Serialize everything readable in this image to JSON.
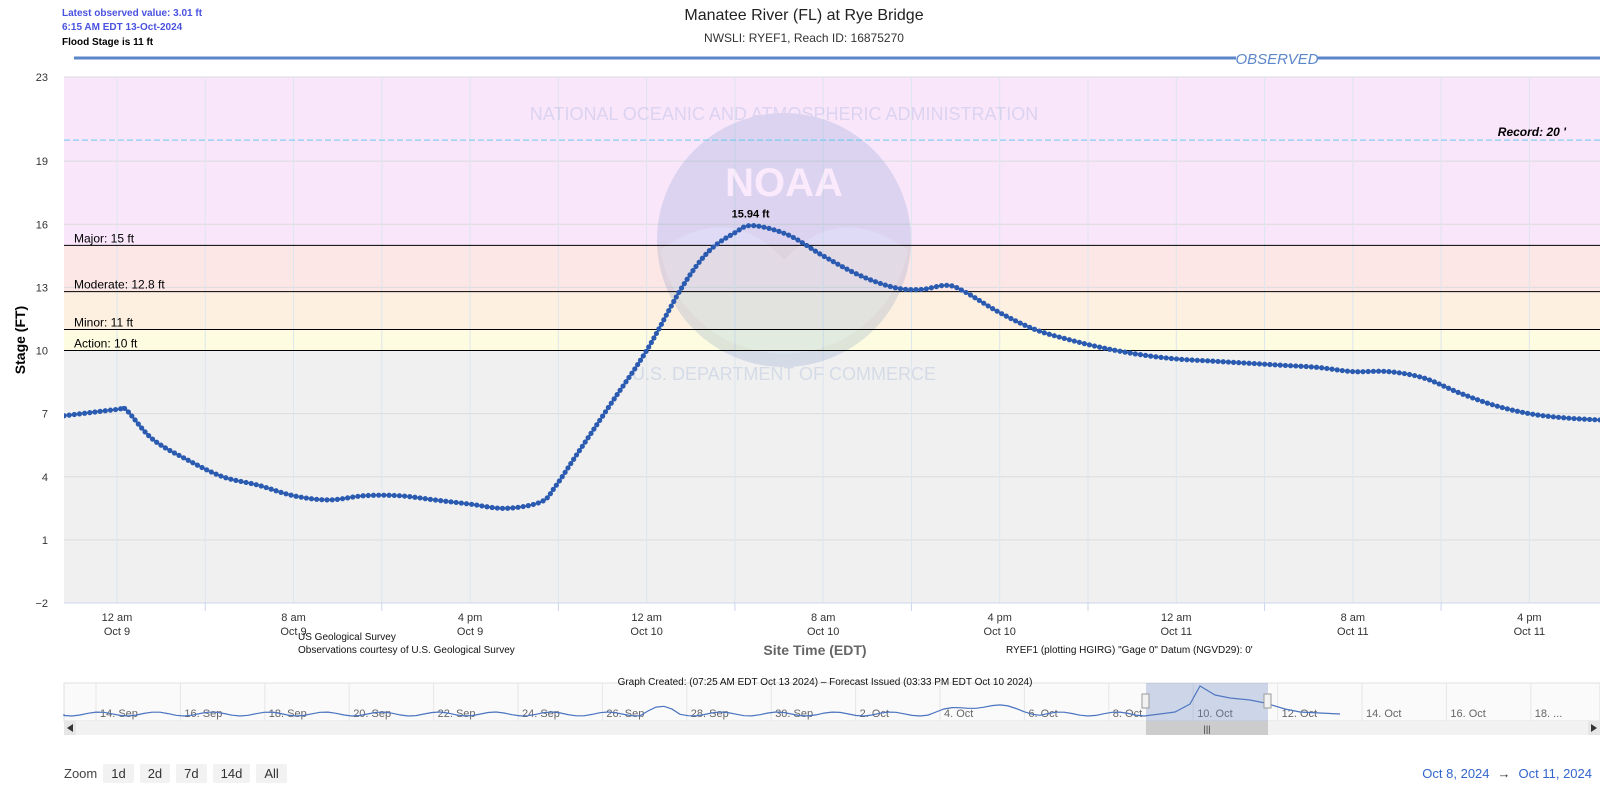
{
  "info": {
    "latest": "Latest observed value: 3.01 ft",
    "time": "6:15 AM EDT 13-Oct-2024",
    "flood_stage": "Flood Stage is 11 ft"
  },
  "chart_data": {
    "type": "line",
    "title": "Manatee River (FL) at Rye Bridge",
    "subtitle": "NWSLI: RYEF1, Reach ID: 16875270",
    "ylabel": "Stage (FT)",
    "xlabel": "Site Time (EDT)",
    "ylim": [
      -2,
      23
    ],
    "yticks": [
      -2,
      1,
      4,
      7,
      10,
      13,
      16,
      19,
      23
    ],
    "x_range_hours": [
      -3,
      84
    ],
    "xtick_hours": [
      0,
      10,
      20,
      30,
      40,
      50,
      60,
      70,
      80
    ],
    "xtick_labels": [
      [
        "12 am",
        "Oct 9"
      ],
      [
        "8 am",
        "Oct 9"
      ],
      [
        "4 pm",
        "Oct 9"
      ],
      [
        "12 am",
        "Oct 10"
      ],
      [
        "8 am",
        "Oct 10"
      ],
      [
        "4 pm",
        "Oct 10"
      ],
      [
        "12 am",
        "Oct 11"
      ],
      [
        "8 am",
        "Oct 11"
      ],
      [
        "4 pm",
        "Oct 11"
      ]
    ],
    "observed_label": "OBSERVED",
    "peak_label": "15.94 ft",
    "bands": [
      {
        "from": 15,
        "to": 23,
        "color": "#f9e6fb"
      },
      {
        "from": 12.8,
        "to": 15,
        "color": "#fde6e6"
      },
      {
        "from": 11,
        "to": 12.8,
        "color": "#fdf0e0"
      },
      {
        "from": 10,
        "to": 11,
        "color": "#fdfbe0"
      },
      {
        "from": -2,
        "to": 10,
        "color": "#f0f0f0"
      }
    ],
    "thresholds": [
      {
        "label": "Major: 15 ft",
        "value": 15
      },
      {
        "label": "Moderate: 12.8 ft",
        "value": 12.8
      },
      {
        "label": "Minor: 11 ft",
        "value": 11
      },
      {
        "label": "Action: 10 ft",
        "value": 10
      }
    ],
    "record": {
      "label": "Record: 20 '",
      "value": 20
    },
    "series": [
      {
        "x_hours": [
          -3,
          0,
          0.5,
          2,
          4,
          6,
          8,
          10,
          12,
          14,
          16,
          18,
          20,
          22,
          24,
          24.8,
          26,
          28,
          30,
          32,
          33.5,
          35,
          36,
          38,
          40,
          42,
          44,
          45.5,
          47,
          48,
          50,
          52,
          54,
          56,
          58,
          60,
          62,
          64,
          66,
          68,
          70,
          72,
          74,
          76,
          78,
          80,
          82,
          84
        ],
        "values": [
          6.9,
          7.2,
          7.2,
          5.8,
          4.8,
          4.0,
          3.6,
          3.1,
          2.9,
          3.1,
          3.1,
          2.9,
          2.7,
          2.5,
          2.8,
          3.5,
          5.0,
          7.5,
          10.0,
          13.0,
          14.7,
          15.6,
          15.94,
          15.5,
          14.5,
          13.6,
          13.0,
          12.9,
          13.1,
          12.8,
          11.8,
          11.0,
          10.5,
          10.1,
          9.8,
          9.6,
          9.5,
          9.4,
          9.3,
          9.2,
          9.0,
          9.0,
          8.7,
          8.0,
          7.4,
          7.0,
          6.8,
          6.7
        ]
      }
    ]
  },
  "navigator": {
    "labels": [
      "14. Sep",
      "16. Sep",
      "18. Sep",
      "20. Sep",
      "22. Sep",
      "24. Sep",
      "26. Sep",
      "28. Sep",
      "30. Sep",
      "2. Oct",
      "4. Oct",
      "6. Oct",
      "8. Oct",
      "10. Oct",
      "12. Oct",
      "14. Oct",
      "16. Oct",
      "18. ..."
    ]
  },
  "credits": {
    "usgs": "US Geological Survey",
    "courtesy": "Observations courtesy of U.S. Geological Survey",
    "datum": "RYEF1 (plotting HGIRG) \"Gage 0\" Datum (NGVD29): 0'",
    "graph_created": "Graph Created: (07:25 AM EDT Oct 13 2024) – Forecast Issued (03:33 PM EDT Oct 10 2024)"
  },
  "zoom": {
    "label": "Zoom",
    "buttons": [
      "1d",
      "2d",
      "7d",
      "14d",
      "All"
    ]
  },
  "range": {
    "from": "Oct 8, 2024",
    "arrow": "→",
    "to": "Oct 11, 2024"
  },
  "watermark": {
    "text": "NOAA",
    "ring_top": "NATIONAL OCEANIC AND ATMOSPHERIC ADMINISTRATION",
    "ring_bottom": "U.S. DEPARTMENT OF COMMERCE"
  }
}
